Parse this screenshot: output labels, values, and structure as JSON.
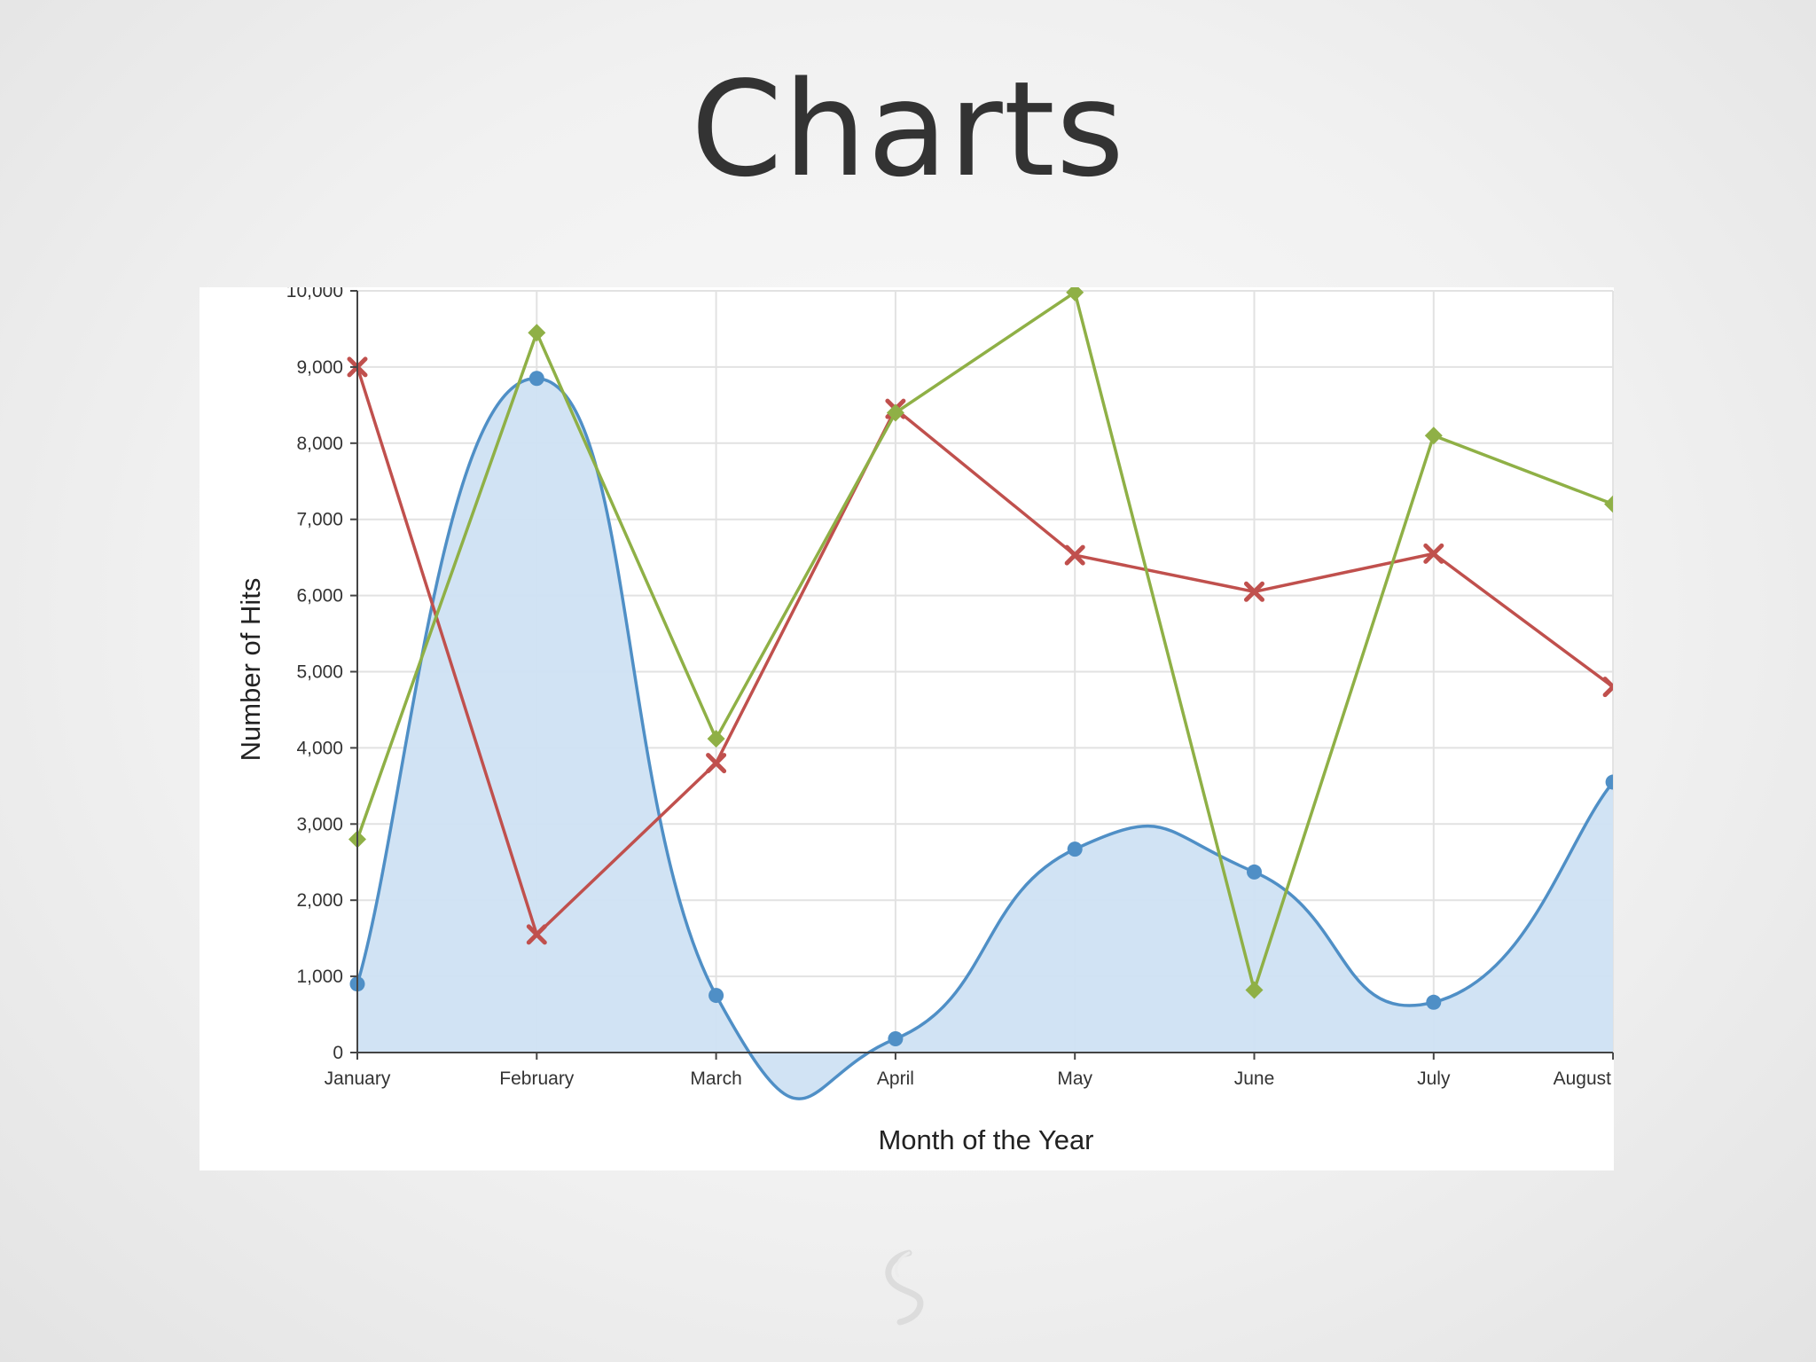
{
  "slide": {
    "title": "Charts",
    "logo_icon": "swirl-logo-icon"
  },
  "chart_data": {
    "type": "line",
    "title": "",
    "xlabel": "Month of the Year",
    "ylabel": "Number of Hits",
    "categories": [
      "January",
      "February",
      "March",
      "April",
      "May",
      "June",
      "July",
      "August"
    ],
    "ylim": [
      0,
      10000
    ],
    "yticks": [
      0,
      1000,
      2000,
      3000,
      4000,
      5000,
      6000,
      7000,
      8000,
      9000,
      10000
    ],
    "ytick_labels": [
      "0",
      "1,000",
      "2,000",
      "3,000",
      "4,000",
      "5,000",
      "6,000",
      "7,000",
      "8,000",
      "9,000",
      "10,000"
    ],
    "grid": true,
    "legend": "none",
    "series": [
      {
        "style": "area-spline",
        "marker": "circle",
        "color": "#4f8fc6",
        "fill": "#cfe2f3",
        "values": [
          900,
          8850,
          750,
          180,
          2670,
          2370,
          660,
          3550
        ]
      },
      {
        "style": "line",
        "marker": "cross",
        "color": "#c0504d",
        "values": [
          9000,
          1550,
          3800,
          8450,
          6530,
          6050,
          6550,
          4800
        ]
      },
      {
        "style": "line",
        "marker": "diamond",
        "color": "#8fb046",
        "values": [
          2800,
          9450,
          4120,
          8400,
          9980,
          820,
          8100,
          7200
        ]
      }
    ]
  }
}
